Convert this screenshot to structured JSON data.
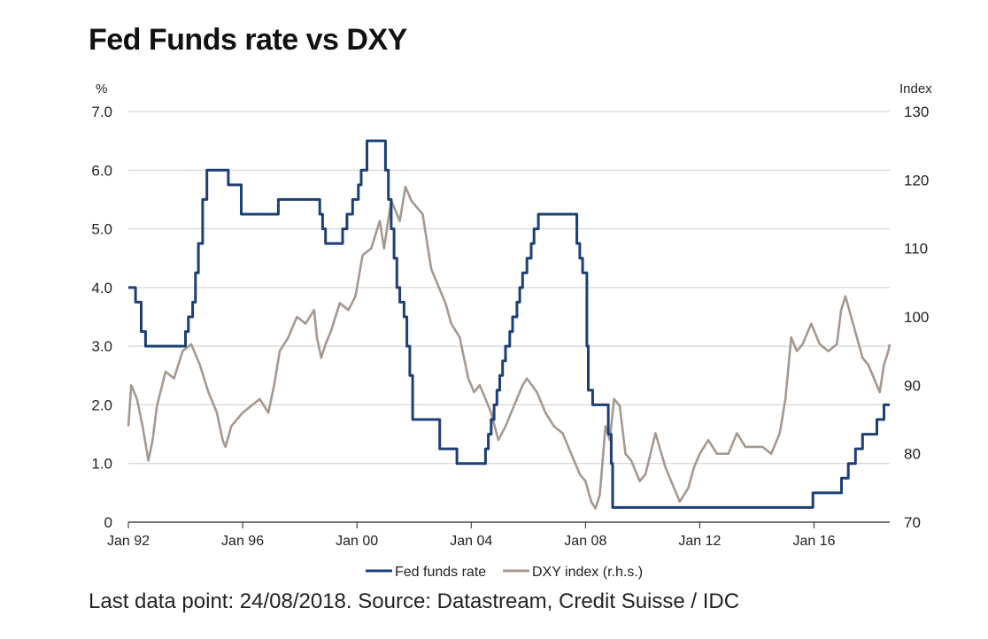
{
  "title": "Fed Funds rate vs DXY",
  "footer": "Last data point: 24/08/2018. Source: Datastream, Credit Suisse / IDC",
  "colors": {
    "fed": "#1d3f75",
    "dxy": "#a59890",
    "grid": "#cfcfcf",
    "axis": "#222222"
  },
  "chart_data": {
    "type": "line",
    "title": "Fed Funds rate vs DXY",
    "ylabel_left": "%",
    "ylabel_right": "Index",
    "ylim_left": [
      0,
      7
    ],
    "ylim_right": [
      70,
      130
    ],
    "yticks_left": [
      "0",
      "1.0",
      "2.0",
      "3.0",
      "4.0",
      "5.0",
      "6.0",
      "7.0"
    ],
    "yticks_right": [
      "70",
      "80",
      "90",
      "100",
      "110",
      "120",
      "130"
    ],
    "xlim": [
      1992.0,
      2018.65
    ],
    "xticks": [
      {
        "x": 1992,
        "label": "Jan 92"
      },
      {
        "x": 1996,
        "label": "Jan 96"
      },
      {
        "x": 2000,
        "label": "Jan 00"
      },
      {
        "x": 2004,
        "label": "Jan 04"
      },
      {
        "x": 2008,
        "label": "Jan 08"
      },
      {
        "x": 2012,
        "label": "Jan 12"
      },
      {
        "x": 2016,
        "label": "Jan 16"
      }
    ],
    "grid": true,
    "legend_position": "bottom",
    "series": [
      {
        "name": "Fed funds rate",
        "axis": "left",
        "step": true,
        "x": [
          1992.0,
          1992.25,
          1992.45,
          1992.6,
          1992.75,
          1993.0,
          1994.0,
          1994.1,
          1994.25,
          1994.35,
          1994.45,
          1994.6,
          1994.75,
          1994.9,
          1995.05,
          1995.5,
          1995.95,
          1996.05,
          1997.25,
          1998.7,
          1998.8,
          1998.9,
          1999.5,
          1999.65,
          1999.85,
          2000.05,
          2000.15,
          2000.35,
          2001.0,
          2001.1,
          2001.2,
          2001.3,
          2001.4,
          2001.5,
          2001.65,
          2001.75,
          2001.85,
          2001.95,
          2002.9,
          2003.5,
          2004.5,
          2004.6,
          2004.7,
          2004.8,
          2004.9,
          2005.0,
          2005.1,
          2005.2,
          2005.35,
          2005.45,
          2005.6,
          2005.7,
          2005.8,
          2005.95,
          2006.1,
          2006.2,
          2006.35,
          2006.5,
          2007.7,
          2007.8,
          2007.9,
          2008.05,
          2008.1,
          2008.25,
          2008.3,
          2008.8,
          2008.9,
          2008.95,
          2015.96,
          2016.96,
          2017.2,
          2017.45,
          2017.7,
          2018.2,
          2018.45,
          2018.65
        ],
        "values": [
          4.0,
          3.75,
          3.25,
          3.0,
          3.0,
          3.0,
          3.25,
          3.5,
          3.75,
          4.25,
          4.75,
          5.5,
          6.0,
          6.0,
          6.0,
          5.75,
          5.25,
          5.25,
          5.5,
          5.25,
          5.0,
          4.75,
          5.0,
          5.25,
          5.5,
          5.75,
          6.0,
          6.5,
          6.0,
          5.5,
          5.0,
          4.5,
          4.0,
          3.75,
          3.5,
          3.0,
          2.5,
          1.75,
          1.25,
          1.0,
          1.25,
          1.5,
          1.75,
          2.0,
          2.25,
          2.5,
          2.75,
          3.0,
          3.25,
          3.5,
          3.75,
          4.0,
          4.25,
          4.5,
          4.75,
          5.0,
          5.25,
          5.25,
          4.75,
          4.5,
          4.25,
          3.0,
          2.25,
          2.0,
          2.0,
          1.5,
          1.0,
          0.25,
          0.5,
          0.75,
          1.0,
          1.25,
          1.5,
          1.75,
          2.0,
          2.0
        ]
      },
      {
        "name": "DXY index (r.h.s.)",
        "axis": "right",
        "step": false,
        "x": [
          1992.0,
          1992.1,
          1992.3,
          1992.5,
          1992.7,
          1992.85,
          1993.0,
          1993.3,
          1993.6,
          1993.9,
          1994.2,
          1994.5,
          1994.8,
          1995.1,
          1995.3,
          1995.4,
          1995.6,
          1995.8,
          1996.0,
          1996.3,
          1996.6,
          1996.9,
          1997.1,
          1997.3,
          1997.6,
          1997.9,
          1998.2,
          1998.5,
          1998.6,
          1998.75,
          1998.9,
          1999.1,
          1999.4,
          1999.7,
          1999.95,
          2000.2,
          2000.5,
          2000.8,
          2000.95,
          2001.2,
          2001.5,
          2001.7,
          2001.9,
          2002.1,
          2002.3,
          2002.6,
          2002.9,
          2003.1,
          2003.3,
          2003.6,
          2003.9,
          2004.1,
          2004.3,
          2004.5,
          2004.7,
          2004.95,
          2005.2,
          2005.5,
          2005.8,
          2005.95,
          2006.3,
          2006.6,
          2006.9,
          2007.2,
          2007.5,
          2007.8,
          2008.0,
          2008.2,
          2008.35,
          2008.5,
          2008.7,
          2008.85,
          2009.0,
          2009.2,
          2009.4,
          2009.6,
          2009.9,
          2010.1,
          2010.45,
          2010.8,
          2011.0,
          2011.3,
          2011.6,
          2011.8,
          2012.0,
          2012.3,
          2012.6,
          2012.8,
          2013.0,
          2013.3,
          2013.6,
          2013.9,
          2014.2,
          2014.5,
          2014.8,
          2015.0,
          2015.2,
          2015.4,
          2015.6,
          2015.9,
          2016.2,
          2016.5,
          2016.8,
          2016.95,
          2017.1,
          2017.3,
          2017.5,
          2017.7,
          2017.9,
          2018.1,
          2018.3,
          2018.45,
          2018.6,
          2018.65
        ],
        "values": [
          84.0,
          90.0,
          88.0,
          84.0,
          79.0,
          82.0,
          87.0,
          92.0,
          91.0,
          95.0,
          96.0,
          93.0,
          89.0,
          86.0,
          82.0,
          81.0,
          84.0,
          85.0,
          86.0,
          87.0,
          88.0,
          86.0,
          90.0,
          95.0,
          97.0,
          100.0,
          99.0,
          101.0,
          97.0,
          94.0,
          96.0,
          98.0,
          102.0,
          101.0,
          103.0,
          109.0,
          110.0,
          114.0,
          110.0,
          117.0,
          114.0,
          119.0,
          117.0,
          116.0,
          115.0,
          107.0,
          104.0,
          102.0,
          99.0,
          97.0,
          91.0,
          89.0,
          90.0,
          88.0,
          86.0,
          82.0,
          84.0,
          87.0,
          90.0,
          91.0,
          89.0,
          86.0,
          84.0,
          83.0,
          80.0,
          77.0,
          76.0,
          73.0,
          72.0,
          74.0,
          84.0,
          82.0,
          88.0,
          87.0,
          80.0,
          79.0,
          76.0,
          77.0,
          83.0,
          78.0,
          76.0,
          73.0,
          75.0,
          78.0,
          80.0,
          82.0,
          80.0,
          80.0,
          80.0,
          83.0,
          81.0,
          81.0,
          81.0,
          80.0,
          83.0,
          88.0,
          97.0,
          95.0,
          96.0,
          99.0,
          96.0,
          95.0,
          96.0,
          101.0,
          103.0,
          100.0,
          97.0,
          94.0,
          93.0,
          91.0,
          89.0,
          93.0,
          95.0,
          96.0
        ]
      }
    ]
  }
}
